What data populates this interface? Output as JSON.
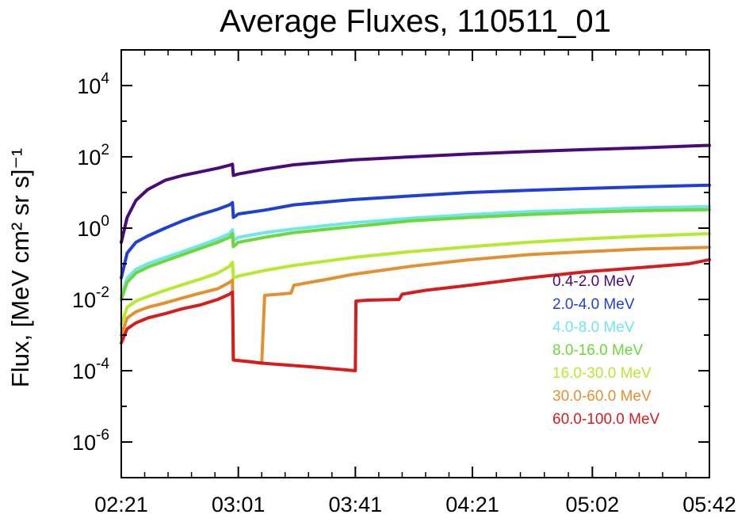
{
  "chart_data": {
    "type": "line",
    "title": "Average Fluxes, 110511_01",
    "xlabel": "",
    "ylabel": "Flux, [MeV cm² sr s]⁻¹",
    "y_scale": "log",
    "ylim": [
      1e-07,
      100000.0
    ],
    "x_tick_labels": [
      "02:21",
      "03:01",
      "03:41",
      "04:21",
      "05:02",
      "05:42"
    ],
    "x_ticks_minutes": [
      141,
      181,
      221,
      261,
      302,
      342
    ],
    "xlim_minutes": [
      141,
      342
    ],
    "y_tick_exponents": [
      -6,
      -4,
      -2,
      0,
      2,
      4
    ],
    "grid": false,
    "legend_position": "right",
    "series": [
      {
        "name": "0.4-2.0 MeV",
        "color": "#4b0a7a",
        "points": [
          [
            141,
            0.4
          ],
          [
            143,
            2
          ],
          [
            146,
            6
          ],
          [
            150,
            12
          ],
          [
            156,
            22
          ],
          [
            162,
            30
          ],
          [
            168,
            38
          ],
          [
            174,
            48
          ],
          [
            178,
            58
          ],
          [
            179,
            62
          ],
          [
            179.3,
            30
          ],
          [
            181,
            33
          ],
          [
            190,
            45
          ],
          [
            200,
            60
          ],
          [
            220,
            82
          ],
          [
            240,
            100
          ],
          [
            260,
            120
          ],
          [
            280,
            140
          ],
          [
            300,
            160
          ],
          [
            320,
            180
          ],
          [
            342,
            210
          ]
        ]
      },
      {
        "name": "2.0-4.0 MeV",
        "color": "#1f3fd8",
        "points": [
          [
            141,
            0.04
          ],
          [
            143,
            0.2
          ],
          [
            146,
            0.4
          ],
          [
            150,
            0.6
          ],
          [
            156,
            1.0
          ],
          [
            162,
            1.6
          ],
          [
            168,
            2.4
          ],
          [
            174,
            3.4
          ],
          [
            178,
            4.5
          ],
          [
            179,
            5.2
          ],
          [
            179.3,
            2.0
          ],
          [
            181,
            2.5
          ],
          [
            190,
            3.2
          ],
          [
            200,
            4.5
          ],
          [
            220,
            6.3
          ],
          [
            240,
            8
          ],
          [
            260,
            10
          ],
          [
            280,
            11.5
          ],
          [
            300,
            13
          ],
          [
            320,
            14.5
          ],
          [
            342,
            16
          ]
        ]
      },
      {
        "name": "4.0-8.0 MeV",
        "color": "#6fe6ee",
        "points": [
          [
            141,
            0.012
          ],
          [
            143,
            0.04
          ],
          [
            146,
            0.07
          ],
          [
            150,
            0.1
          ],
          [
            156,
            0.15
          ],
          [
            162,
            0.22
          ],
          [
            168,
            0.33
          ],
          [
            174,
            0.5
          ],
          [
            178,
            0.7
          ],
          [
            179,
            0.9
          ],
          [
            179.3,
            0.45
          ],
          [
            181,
            0.55
          ],
          [
            190,
            0.75
          ],
          [
            200,
            0.95
          ],
          [
            220,
            1.4
          ],
          [
            240,
            1.9
          ],
          [
            260,
            2.4
          ],
          [
            280,
            2.9
          ],
          [
            300,
            3.3
          ],
          [
            320,
            3.7
          ],
          [
            342,
            4.0
          ]
        ]
      },
      {
        "name": "8.0-16.0 MeV",
        "color": "#6cd83a",
        "points": [
          [
            141,
            0.01
          ],
          [
            143,
            0.03
          ],
          [
            146,
            0.055
          ],
          [
            150,
            0.08
          ],
          [
            156,
            0.12
          ],
          [
            162,
            0.18
          ],
          [
            168,
            0.27
          ],
          [
            174,
            0.4
          ],
          [
            178,
            0.55
          ],
          [
            179,
            0.7
          ],
          [
            179.3,
            0.3
          ],
          [
            181,
            0.4
          ],
          [
            190,
            0.55
          ],
          [
            200,
            0.75
          ],
          [
            220,
            1.1
          ],
          [
            240,
            1.6
          ],
          [
            260,
            2.0
          ],
          [
            280,
            2.4
          ],
          [
            300,
            2.8
          ],
          [
            320,
            3.1
          ],
          [
            342,
            3.3
          ]
        ]
      },
      {
        "name": "16.0-30.0 MeV",
        "color": "#b6ea2e",
        "points": [
          [
            141,
            0.002
          ],
          [
            143,
            0.006
          ],
          [
            146,
            0.009
          ],
          [
            150,
            0.012
          ],
          [
            156,
            0.018
          ],
          [
            162,
            0.026
          ],
          [
            168,
            0.037
          ],
          [
            174,
            0.055
          ],
          [
            178,
            0.085
          ],
          [
            179,
            0.11
          ],
          [
            179.3,
            0.04
          ],
          [
            181,
            0.045
          ],
          [
            190,
            0.065
          ],
          [
            200,
            0.09
          ],
          [
            220,
            0.15
          ],
          [
            240,
            0.22
          ],
          [
            260,
            0.3
          ],
          [
            280,
            0.4
          ],
          [
            300,
            0.5
          ],
          [
            320,
            0.6
          ],
          [
            342,
            0.7
          ]
        ]
      },
      {
        "name": "30.0-60.0 MeV",
        "color": "#e39130",
        "points": [
          [
            141,
            0.001
          ],
          [
            143,
            0.003
          ],
          [
            146,
            0.0045
          ],
          [
            150,
            0.006
          ],
          [
            156,
            0.008
          ],
          [
            162,
            0.011
          ],
          [
            168,
            0.015
          ],
          [
            174,
            0.02
          ],
          [
            178,
            0.03
          ],
          [
            179,
            0.035
          ],
          [
            179.3,
            0.0002
          ],
          [
            185,
            0.00018
          ],
          [
            189,
            0.00016
          ],
          [
            190,
            0.013
          ],
          [
            195,
            0.014
          ],
          [
            199,
            0.015
          ],
          [
            200,
            0.025
          ],
          [
            210,
            0.035
          ],
          [
            220,
            0.05
          ],
          [
            240,
            0.085
          ],
          [
            260,
            0.13
          ],
          [
            280,
            0.18
          ],
          [
            300,
            0.22
          ],
          [
            320,
            0.26
          ],
          [
            342,
            0.29
          ]
        ]
      },
      {
        "name": "60.0-100.0 MeV",
        "color": "#d81c1c",
        "points": [
          [
            141,
            0.0006
          ],
          [
            143,
            0.0015
          ],
          [
            146,
            0.0022
          ],
          [
            150,
            0.003
          ],
          [
            156,
            0.004
          ],
          [
            162,
            0.0055
          ],
          [
            168,
            0.007
          ],
          [
            174,
            0.01
          ],
          [
            178,
            0.014
          ],
          [
            179,
            0.016
          ],
          [
            179.3,
            0.0002
          ],
          [
            190,
            0.00016
          ],
          [
            205,
            0.00013
          ],
          [
            221,
            0.0001
          ],
          [
            221.2,
            0.009
          ],
          [
            225,
            0.0095
          ],
          [
            236,
            0.01
          ],
          [
            237,
            0.014
          ],
          [
            245,
            0.018
          ],
          [
            260,
            0.025
          ],
          [
            280,
            0.04
          ],
          [
            300,
            0.06
          ],
          [
            320,
            0.08
          ],
          [
            335,
            0.1
          ],
          [
            342,
            0.13
          ]
        ]
      }
    ]
  }
}
